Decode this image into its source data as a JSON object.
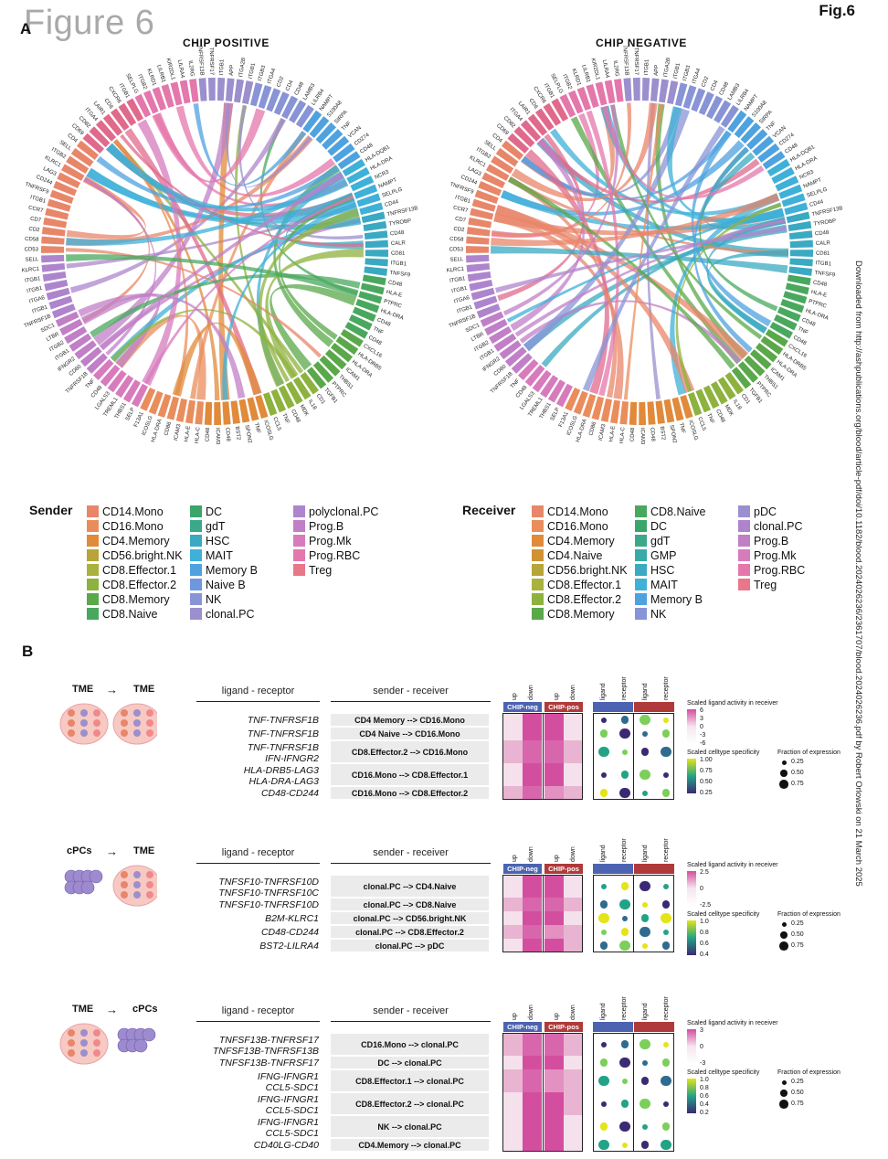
{
  "figure": {
    "title": "Figure 6",
    "tag": "Fig.6",
    "panel_a": "A",
    "panel_b": "B"
  },
  "side_note": "Downloaded from http://ashpublications.org/blood/article-pdf/doi/10.1182/blood.2024026236/2361707/blood.2024026236.pdf by Robert Orlowski on 21 March 2025",
  "chord_left": {
    "title": "CHIP POSITIVE",
    "labels": [
      "TNFRSF9",
      "CD244",
      "LAG3",
      "KLRC1",
      "ITGB2",
      "SELL",
      "CD4",
      "CD69",
      "CD82",
      "ITGA4",
      "LAIR1",
      "CD6",
      "CXCR6",
      "ITGB1",
      "SELPLG",
      "ITGB2",
      "KLRD1",
      "LILRB1",
      "KIR2DL1",
      "LILRA4",
      "IL2RG",
      "TNFRSF13B",
      "TNFRSF17",
      "ITGB1",
      "APP",
      "ITGA2B",
      "ITGB1",
      "ITGB3",
      "ITGA4",
      "CD2",
      "CD4",
      "CD48",
      "LAMB3",
      "LILRB4",
      "NAMPT",
      "S100A8",
      "SIRPA",
      "TNF",
      "VCAN",
      "CD274",
      "CD48",
      "HLA-DQB1",
      "HLA-DRA",
      "NCR3",
      "NAMPT",
      "SELPLG",
      "CD44",
      "TNFRSF13B",
      "TYROBP",
      "CD48",
      "CALR",
      "CD81",
      "ITGB1",
      "TNFSF9",
      "CD48",
      "HLA-E",
      "PTPRC",
      "HLA-DRA",
      "CD48",
      "TNF",
      "CD48",
      "CXCL16",
      "HLA-DRB5",
      "HLA-DRA",
      "ICAM1",
      "THBS1",
      "PTPRC",
      "TGFB1",
      "CD1",
      "IL18",
      "MDK",
      "CD48",
      "TNF",
      "CCL5",
      "ICOSLG",
      "TNF",
      "SPON2",
      "BST2",
      "CD48",
      "ICAM3",
      "CD48",
      "HLA-C",
      "HLA-E",
      "ICAM3",
      "CD86",
      "HLA-DRA",
      "ICOSLG",
      "F13A1",
      "SELP",
      "THBS1",
      "TREML1",
      "LGALS3",
      "CD48",
      "TNF",
      "TNFRSF1B",
      "CD80",
      "IFNGR2",
      "ITGB1",
      "ITGB2",
      "LTBR",
      "SDC1",
      "TNFRSF1B",
      "ITGB1",
      "ITGA6",
      "ITGB1",
      "ITGB1",
      "KLRC1",
      "SELL",
      "CD53",
      "CD58",
      "CD2",
      "CD7",
      "CCR7",
      "ITGB1"
    ]
  },
  "chord_right": {
    "title": "CHIP NEGATIVE",
    "labels": [
      "TNFRSF9",
      "CD244",
      "LAG3",
      "KLRC1",
      "ITGB2",
      "SELL",
      "CD4",
      "CD69",
      "CD82",
      "ITGA4",
      "LAIR1",
      "CD6",
      "CXCR6",
      "ITGB1",
      "SELPLG",
      "ITGB2",
      "KLRD1",
      "LILRB1",
      "KIR2DL1",
      "LILRA4",
      "IL2RG",
      "TNFRSF13B",
      "TNFRSF17",
      "ITGB1",
      "APP",
      "ITGA2B",
      "ITGB1",
      "ITGB3",
      "ITGA4",
      "CD2",
      "CD4",
      "CD48",
      "LAMB3",
      "LILRB4",
      "NAMPT",
      "S100A8",
      "SIRPA",
      "TNF",
      "VCAN",
      "CD274",
      "CD48",
      "HLA-DQB1",
      "HLA-DRA",
      "NCR3",
      "NAMPT",
      "SELPLG",
      "CD44",
      "TNFRSF13B",
      "TYROBP",
      "CD48",
      "CALR",
      "CD81",
      "ITGB1",
      "TNFSF9",
      "CD48",
      "HLA-E",
      "PTPRC",
      "HLA-DRA",
      "CD48",
      "TNF",
      "CD48",
      "CXCL16",
      "HLA-DRB5",
      "HLA-DRA",
      "ICAM1",
      "THBS1",
      "PTPRC",
      "TGFB1",
      "CD1",
      "IL18",
      "MDK",
      "CD48",
      "TNF",
      "CCL5",
      "ICOSLG",
      "TNF",
      "SPON2",
      "BST2",
      "CD48",
      "ICAM3",
      "CD48",
      "HLA-C",
      "HLA-E",
      "ICAM3",
      "CD86",
      "HLA-DRA",
      "ICOSLG",
      "F13A1",
      "SELP",
      "THBS1",
      "TREML1",
      "LGALS3",
      "CD48",
      "TNF",
      "TNFRSF1B",
      "CD80",
      "IFNGR2",
      "ITGB1",
      "ITGB2",
      "LTBR",
      "SDC1",
      "TNFRSF1B",
      "ITGB1",
      "ITGA6",
      "ITGB1",
      "ITGB1",
      "KLRC1",
      "SELL",
      "CD53",
      "CD58",
      "CD2",
      "CD7",
      "CCR7",
      "ITGB1"
    ]
  },
  "sender_legend": {
    "title": "Sender",
    "items": [
      {
        "label": "CD14.Mono",
        "color": "#e8866a"
      },
      {
        "label": "CD16.Mono",
        "color": "#ea8d5c"
      },
      {
        "label": "CD4.Memory",
        "color": "#e08a3a"
      },
      {
        "label": "CD56.bright.NK",
        "color": "#b7a53a"
      },
      {
        "label": "CD8.Effector.1",
        "color": "#a8b23c"
      },
      {
        "label": "CD8.Effector.2",
        "color": "#8db23e"
      },
      {
        "label": "CD8.Memory",
        "color": "#5aa84a"
      },
      {
        "label": "CD8.Naive",
        "color": "#49a85e"
      },
      {
        "label": "DC",
        "color": "#3ca56a"
      },
      {
        "label": "gdT",
        "color": "#39a98a"
      },
      {
        "label": "HSC",
        "color": "#3aa9c2"
      },
      {
        "label": "MAIT",
        "color": "#3fb0d8"
      },
      {
        "label": "Memory B",
        "color": "#4ea2df"
      },
      {
        "label": "Naive B",
        "color": "#6f97de"
      },
      {
        "label": "NK",
        "color": "#8894d6"
      },
      {
        "label": "clonal.PC",
        "color": "#9b8fce"
      },
      {
        "label": "polyclonal.PC",
        "color": "#ae85cc"
      },
      {
        "label": "Prog.B",
        "color": "#c07fc7"
      },
      {
        "label": "Prog.Mk",
        "color": "#d77bbd"
      },
      {
        "label": "Prog.RBC",
        "color": "#e477ab"
      },
      {
        "label": "Treg",
        "color": "#e9778a"
      }
    ]
  },
  "receiver_legend": {
    "title": "Receiver",
    "items": [
      {
        "label": "CD14.Mono",
        "color": "#e8866a"
      },
      {
        "label": "CD16.Mono",
        "color": "#ea8d5c"
      },
      {
        "label": "CD4.Memory",
        "color": "#e08a3a"
      },
      {
        "label": "CD4.Naive",
        "color": "#d19234"
      },
      {
        "label": "CD56.bright.NK",
        "color": "#b7a53a"
      },
      {
        "label": "CD8.Effector.1",
        "color": "#a8b23c"
      },
      {
        "label": "CD8.Effector.2",
        "color": "#8db23e"
      },
      {
        "label": "CD8.Memory",
        "color": "#5aa84a"
      },
      {
        "label": "CD8.Naive",
        "color": "#49a85e"
      },
      {
        "label": "DC",
        "color": "#3ca56a"
      },
      {
        "label": "gdT",
        "color": "#39a98a"
      },
      {
        "label": "GMP",
        "color": "#39a9a8"
      },
      {
        "label": "HSC",
        "color": "#3aa9c2"
      },
      {
        "label": "MAIT",
        "color": "#3fb0d8"
      },
      {
        "label": "Memory B",
        "color": "#4ea2df"
      },
      {
        "label": "NK",
        "color": "#8894d6"
      },
      {
        "label": "pDC",
        "color": "#9b8fce"
      },
      {
        "label": "clonal.PC",
        "color": "#ae85cc"
      },
      {
        "label": "Prog.B",
        "color": "#c07fc7"
      },
      {
        "label": "Prog.Mk",
        "color": "#d77bbd"
      },
      {
        "label": "Prog.RBC",
        "color": "#e477ab"
      },
      {
        "label": "Treg",
        "color": "#e9778a"
      }
    ]
  },
  "panel_b": {
    "col_ligand_receptor": "ligand - receptor",
    "col_sender_receiver": "sender - receiver",
    "cond_labels": [
      "up",
      "down",
      "up",
      "down"
    ],
    "chip_neg": "CHIP-neg",
    "chip_pos": "CHIP-pos",
    "spec_labels": [
      "ligand",
      "receptor",
      "ligand",
      "receptor"
    ],
    "arrow": "→",
    "legend_activity": "Scaled ligand activity in receiver",
    "legend_specificity": "Scaled celltype specificity",
    "legend_fraction": "Fraction of expression",
    "fraction_values": [
      "0.25",
      "0.50",
      "0.75"
    ],
    "blocks": [
      {
        "from": "TME",
        "to": "TME",
        "activity_ticks": [
          "6",
          "3",
          "0",
          "-3",
          "-6"
        ],
        "spec_ticks": [
          "1.00",
          "0.75",
          "0.50",
          "0.25"
        ],
        "rows": [
          {
            "lr": [
              "TNF-TNFRSF1B"
            ],
            "sr": "CD4 Memory --> CD16.Mono"
          },
          {
            "lr": [
              "TNF-TNFRSF1B"
            ],
            "sr": "CD4 Naive --> CD16.Mono"
          },
          {
            "lr": [
              "TNF-TNFRSF1B",
              "IFN-IFNGR2"
            ],
            "sr": "CD8.Effector.2 --> CD16.Mono"
          },
          {
            "lr": [
              "HLA-DRB5-LAG3",
              "HLA-DRA-LAG3"
            ],
            "sr": "CD16.Mono --> CD8.Effector.1"
          },
          {
            "lr": [
              "CD48-CD244"
            ],
            "sr": "CD16.Mono --> CD8.Effector.2"
          }
        ]
      },
      {
        "from": "cPCs",
        "to": "TME",
        "activity_ticks": [
          "2.5",
          "0",
          "-2.5"
        ],
        "spec_ticks": [
          "1.0",
          "0.8",
          "0.6",
          "0.4"
        ],
        "rows": [
          {
            "lr": [
              "TNFSF10-TNFRSF10D",
              "TNFSF10-TNFRSF10C"
            ],
            "sr": "clonal.PC --> CD4.Naive"
          },
          {
            "lr": [
              "TNFSF10-TNFRSF10D"
            ],
            "sr": "clonal.PC --> CD8.Naive"
          },
          {
            "lr": [
              "B2M-KLRC1"
            ],
            "sr": "clonal.PC --> CD56.bright.NK"
          },
          {
            "lr": [
              "CD48-CD244"
            ],
            "sr": "clonal.PC --> CD8.Effector.2"
          },
          {
            "lr": [
              "BST2-LILRA4"
            ],
            "sr": "clonal.PC --> pDC"
          }
        ]
      },
      {
        "from": "TME",
        "to": "cPCs",
        "activity_ticks": [
          "3",
          "0",
          "-3"
        ],
        "spec_ticks": [
          "1.0",
          "0.8",
          "0.6",
          "0.4",
          "0.2"
        ],
        "rows": [
          {
            "lr": [
              "TNFSF13B-TNFRSF17",
              "TNFSF13B-TNFRSF13B"
            ],
            "sr": "CD16.Mono --> clonal.PC"
          },
          {
            "lr": [
              "TNFSF13B-TNFRSF17"
            ],
            "sr": "DC --> clonal.PC"
          },
          {
            "lr": [
              "IFNG-IFNGR1",
              "CCL5-SDC1"
            ],
            "sr": "CD8.Effector.1 --> clonal.PC"
          },
          {
            "lr": [
              "IFNG-IFNGR1",
              "CCL5-SDC1"
            ],
            "sr": "CD8.Effector.2 --> clonal.PC"
          },
          {
            "lr": [
              "IFNG-IFNGR1",
              "CCL5-SDC1"
            ],
            "sr": "NK --> clonal.PC"
          },
          {
            "lr": [
              "CD40LG-CD40"
            ],
            "sr": "CD4.Memory --> clonal.PC"
          }
        ]
      }
    ]
  }
}
